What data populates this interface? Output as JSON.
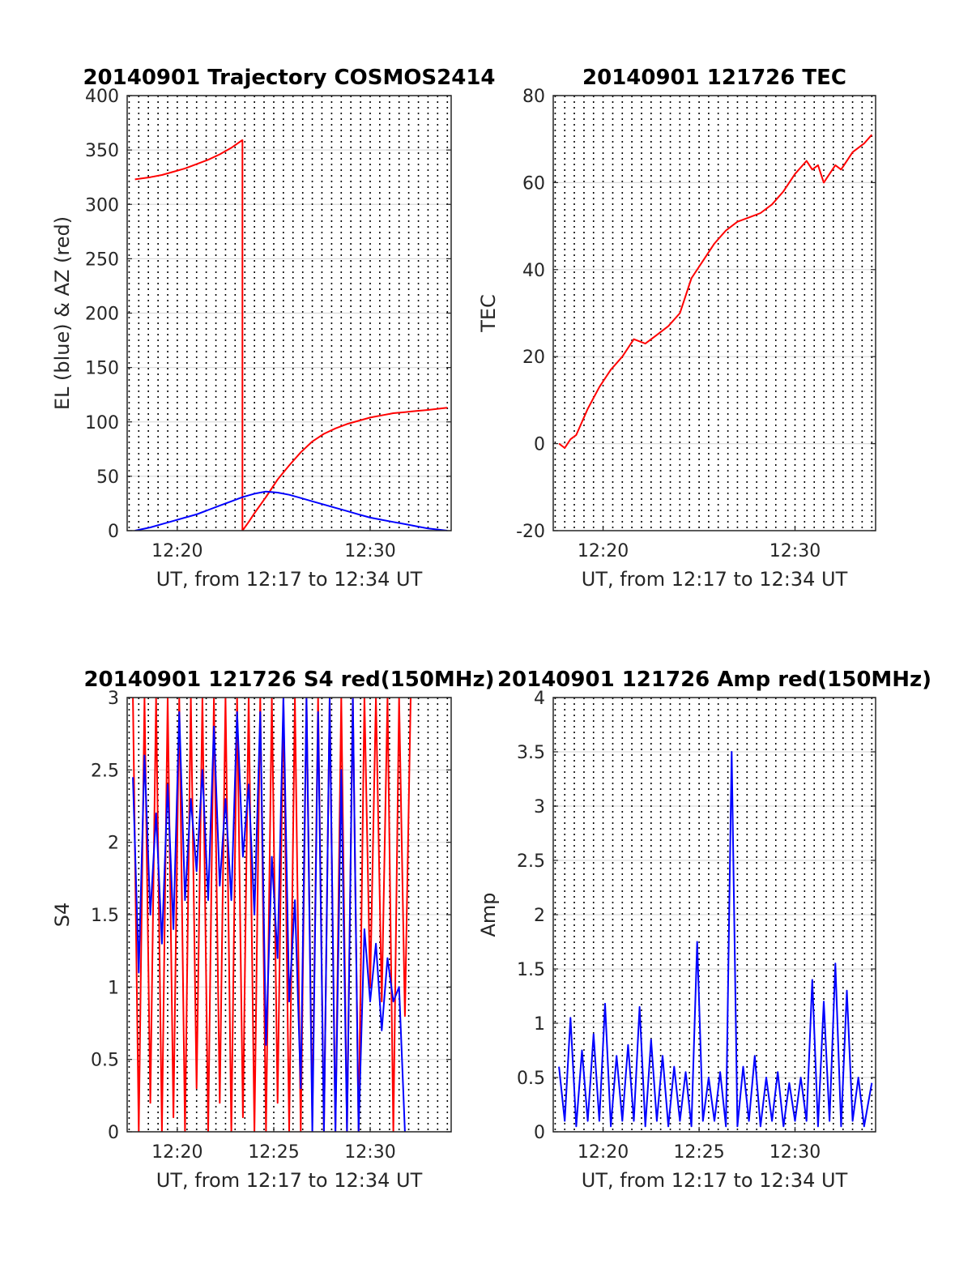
{
  "chart_data": [
    {
      "type": "line",
      "title": "20140901 Trajectory COSMOS2414",
      "xlabel": "UT, from 12:17 to 12:34 UT",
      "ylabel": "EL (blue) & AZ (red)",
      "xlim": [
        12.29,
        12.57
      ],
      "ylim": [
        0,
        400
      ],
      "xticks": [
        {
          "v": 12.3333,
          "label": "12:20"
        },
        {
          "v": 12.5,
          "label": "12:30"
        }
      ],
      "yticks": [
        {
          "v": 0,
          "label": "0"
        },
        {
          "v": 50,
          "label": "50"
        },
        {
          "v": 100,
          "label": "100"
        },
        {
          "v": 150,
          "label": "150"
        },
        {
          "v": 200,
          "label": "200"
        },
        {
          "v": 250,
          "label": "250"
        },
        {
          "v": 300,
          "label": "300"
        },
        {
          "v": 350,
          "label": "350"
        },
        {
          "v": 400,
          "label": "400"
        }
      ],
      "grid": true,
      "series": [
        {
          "color": "#ff0000",
          "x": [
            12.2967,
            12.31,
            12.32,
            12.33,
            12.34,
            12.35,
            12.36,
            12.37,
            12.38,
            12.3895,
            12.3896,
            12.3896,
            12.395,
            12.4,
            12.41,
            12.42,
            12.43,
            12.44,
            12.45,
            12.46,
            12.47,
            12.48,
            12.49,
            12.5,
            12.51,
            12.52,
            12.53,
            12.54,
            12.55,
            12.5667
          ],
          "y": [
            323,
            325,
            327,
            330,
            333,
            337,
            341,
            346,
            352,
            359,
            359,
            0,
            8,
            16,
            31,
            47,
            60,
            72,
            82,
            89,
            94,
            98,
            101,
            104,
            106,
            108,
            109,
            110,
            111,
            113
          ]
        },
        {
          "color": "#0000ff",
          "x": [
            12.2967,
            12.31,
            12.32,
            12.33,
            12.34,
            12.35,
            12.36,
            12.37,
            12.38,
            12.39,
            12.4,
            12.41,
            12.42,
            12.43,
            12.44,
            12.45,
            12.46,
            12.47,
            12.48,
            12.49,
            12.5,
            12.51,
            12.52,
            12.53,
            12.54,
            12.55,
            12.5667
          ],
          "y": [
            0,
            3,
            6,
            9,
            12,
            15,
            19,
            23,
            27,
            31,
            34,
            36,
            35,
            33,
            30,
            27,
            24,
            21,
            18,
            15,
            12,
            10,
            8,
            6,
            4,
            2,
            0
          ]
        }
      ]
    },
    {
      "type": "line",
      "title": "20140901 121726 TEC",
      "xlabel": "UT, from 12:17 to 12:34 UT",
      "ylabel": "TEC",
      "xlim": [
        12.29,
        12.57
      ],
      "ylim": [
        -20,
        80
      ],
      "xticks": [
        {
          "v": 12.3333,
          "label": "12:20"
        },
        {
          "v": 12.5,
          "label": "12:30"
        }
      ],
      "yticks": [
        {
          "v": -20,
          "label": "-20"
        },
        {
          "v": 0,
          "label": "0"
        },
        {
          "v": 20,
          "label": "20"
        },
        {
          "v": 40,
          "label": "40"
        },
        {
          "v": 60,
          "label": "60"
        },
        {
          "v": 80,
          "label": "80"
        }
      ],
      "grid": true,
      "series": [
        {
          "color": "#ff0000",
          "x": [
            12.295,
            12.3,
            12.305,
            12.31,
            12.32,
            12.33,
            12.34,
            12.35,
            12.36,
            12.37,
            12.38,
            12.39,
            12.4,
            12.41,
            12.42,
            12.43,
            12.44,
            12.45,
            12.46,
            12.47,
            12.48,
            12.49,
            12.5,
            12.51,
            12.515,
            12.52,
            12.525,
            12.53,
            12.535,
            12.54,
            12.55,
            12.56,
            12.5667
          ],
          "y": [
            0,
            -1,
            1,
            2,
            8,
            13,
            17,
            20,
            24,
            23,
            25,
            27,
            30,
            38,
            42,
            46,
            49,
            51,
            52,
            53,
            55,
            58,
            62,
            65,
            63,
            64,
            60,
            62,
            64,
            63,
            67,
            69,
            71
          ]
        }
      ]
    },
    {
      "type": "line",
      "title": "20140901 121726 S4 red(150MHz)",
      "xlabel": "UT, from 12:17 to 12:34 UT",
      "ylabel": "S4",
      "xlim": [
        12.29,
        12.57
      ],
      "ylim": [
        0,
        3
      ],
      "xticks": [
        {
          "v": 12.3333,
          "label": "12:20"
        },
        {
          "v": 12.4167,
          "label": "12:25"
        },
        {
          "v": 12.5,
          "label": "12:30"
        }
      ],
      "yticks": [
        {
          "v": 0,
          "label": "0"
        },
        {
          "v": 0.5,
          "label": "0.5"
        },
        {
          "v": 1,
          "label": "1"
        },
        {
          "v": 1.5,
          "label": "1.5"
        },
        {
          "v": 2,
          "label": "2"
        },
        {
          "v": 2.5,
          "label": "2.5"
        },
        {
          "v": 3,
          "label": "3"
        }
      ],
      "grid": true,
      "series": [
        {
          "color": "#ff0000",
          "x": [
            12.295,
            12.3,
            12.305,
            12.31,
            12.315,
            12.32,
            12.325,
            12.33,
            12.335,
            12.34,
            12.345,
            12.35,
            12.355,
            12.36,
            12.365,
            12.37,
            12.375,
            12.38,
            12.385,
            12.39,
            12.395,
            12.4,
            12.405,
            12.41,
            12.415,
            12.42,
            12.425,
            12.43,
            12.435,
            12.44,
            12.445,
            12.45,
            12.455,
            12.46,
            12.465,
            12.47,
            12.475,
            12.48,
            12.485,
            12.49,
            12.495,
            12.5,
            12.505,
            12.51,
            12.515,
            12.52,
            12.525,
            12.53,
            12.535
          ],
          "y": [
            3,
            0,
            3,
            0.2,
            3,
            0,
            3,
            0.1,
            3,
            0,
            3,
            0.3,
            3,
            0,
            3,
            0.2,
            3,
            0,
            3,
            0.1,
            3,
            0,
            3,
            0,
            3,
            0.2,
            3,
            0,
            3,
            0,
            3,
            0.1,
            3,
            0,
            3,
            0,
            3,
            0,
            3,
            0,
            3,
            1.0,
            3,
            0.9,
            3,
            0,
            3,
            0.8,
            3
          ]
        },
        {
          "color": "#0000ff",
          "x": [
            12.295,
            12.3,
            12.305,
            12.31,
            12.315,
            12.32,
            12.325,
            12.33,
            12.335,
            12.34,
            12.345,
            12.35,
            12.355,
            12.36,
            12.365,
            12.37,
            12.375,
            12.38,
            12.385,
            12.39,
            12.395,
            12.4,
            12.405,
            12.41,
            12.415,
            12.42,
            12.425,
            12.43,
            12.435,
            12.44,
            12.445,
            12.45,
            12.455,
            12.46,
            12.465,
            12.47,
            12.475,
            12.48,
            12.485,
            12.49,
            12.495,
            12.5,
            12.505,
            12.51,
            12.515,
            12.52,
            12.525,
            12.53
          ],
          "y": [
            2.45,
            1.1,
            2.6,
            1.5,
            2.2,
            1.3,
            2.4,
            1.4,
            2.9,
            1.6,
            2.3,
            1.8,
            2.5,
            1.6,
            2.8,
            1.7,
            2.3,
            1.6,
            2.9,
            1.9,
            2.4,
            1.5,
            2.9,
            0.6,
            1.9,
            1.2,
            3.0,
            0.9,
            1.6,
            0.3,
            3.0,
            0.0,
            2.9,
            0.0,
            3.0,
            0.0,
            2.5,
            0.0,
            3.0,
            0.0,
            1.4,
            0.9,
            1.3,
            0.7,
            1.2,
            0.9,
            1.0,
            0.0
          ]
        }
      ]
    },
    {
      "type": "line",
      "title": "20140901 121726 Amp red(150MHz)",
      "xlabel": "UT, from 12:17 to 12:34 UT",
      "ylabel": "Amp",
      "xlim": [
        12.29,
        12.57
      ],
      "ylim": [
        0,
        4
      ],
      "xticks": [
        {
          "v": 12.3333,
          "label": "12:20"
        },
        {
          "v": 12.4167,
          "label": "12:25"
        },
        {
          "v": 12.5,
          "label": "12:30"
        }
      ],
      "yticks": [
        {
          "v": 0,
          "label": "0"
        },
        {
          "v": 0.5,
          "label": "0.5"
        },
        {
          "v": 1,
          "label": "1"
        },
        {
          "v": 1.5,
          "label": "1.5"
        },
        {
          "v": 2,
          "label": "2"
        },
        {
          "v": 2.5,
          "label": "2.5"
        },
        {
          "v": 3,
          "label": "3"
        },
        {
          "v": 3.5,
          "label": "3.5"
        },
        {
          "v": 4,
          "label": "4"
        }
      ],
      "grid": true,
      "series": [
        {
          "color": "#0000ff",
          "x": [
            12.295,
            12.3,
            12.305,
            12.31,
            12.315,
            12.32,
            12.325,
            12.33,
            12.335,
            12.34,
            12.345,
            12.35,
            12.355,
            12.36,
            12.365,
            12.37,
            12.375,
            12.38,
            12.385,
            12.39,
            12.395,
            12.4,
            12.405,
            12.41,
            12.415,
            12.42,
            12.425,
            12.43,
            12.435,
            12.44,
            12.445,
            12.45,
            12.455,
            12.46,
            12.465,
            12.47,
            12.475,
            12.48,
            12.485,
            12.49,
            12.495,
            12.5,
            12.505,
            12.51,
            12.515,
            12.52,
            12.525,
            12.53,
            12.535,
            12.54,
            12.545,
            12.55,
            12.555,
            12.56,
            12.5667
          ],
          "y": [
            0.6,
            0.1,
            1.05,
            0.05,
            0.75,
            0.1,
            0.9,
            0.1,
            1.18,
            0.05,
            0.7,
            0.1,
            0.8,
            0.1,
            1.15,
            0.05,
            0.85,
            0.1,
            0.7,
            0.05,
            0.6,
            0.1,
            0.55,
            0.05,
            1.75,
            0.1,
            0.5,
            0.1,
            0.55,
            0.05,
            3.5,
            0.05,
            0.6,
            0.1,
            0.7,
            0.05,
            0.5,
            0.1,
            0.55,
            0.05,
            0.45,
            0.1,
            0.5,
            0.1,
            1.4,
            0.05,
            1.2,
            0.1,
            1.55,
            0.05,
            1.3,
            0.1,
            0.5,
            0.05,
            0.45
          ]
        }
      ]
    }
  ]
}
